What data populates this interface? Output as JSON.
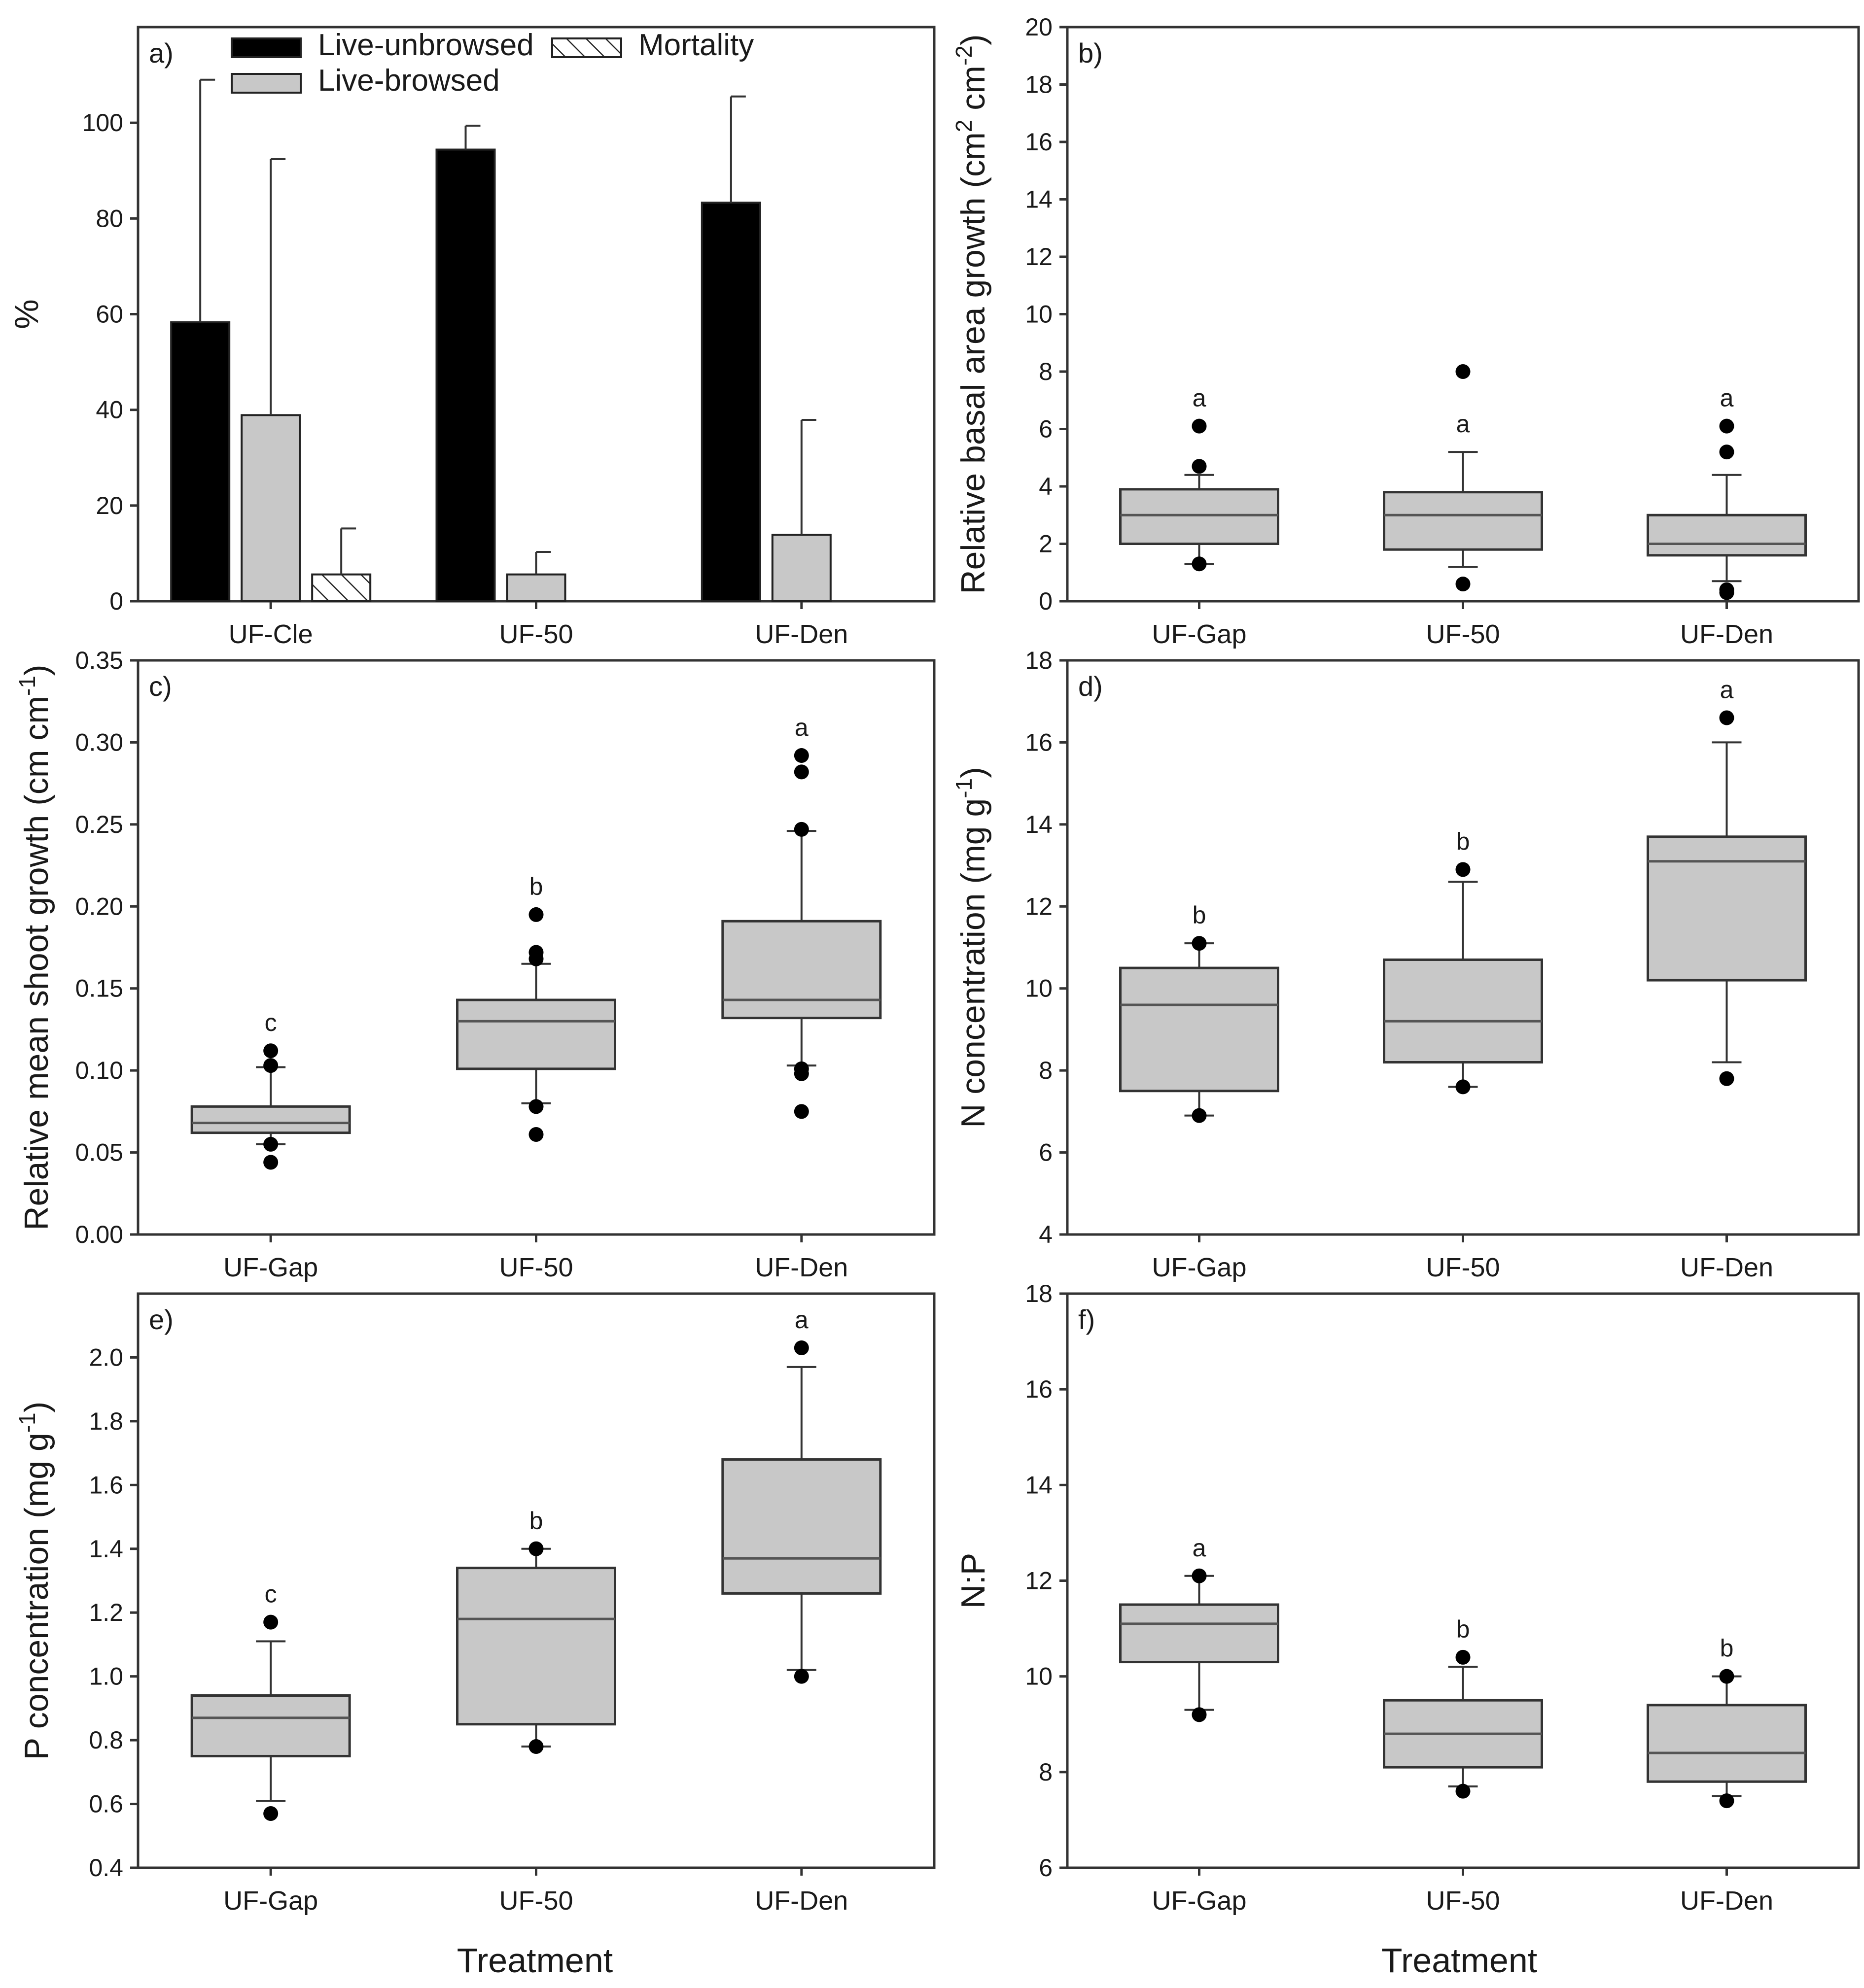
{
  "figure": {
    "xlabel": "Treatment",
    "colors": {
      "live_unbrowsed": "#000000",
      "live_browsed": "#c8c8c8",
      "mortality": "#ffffff",
      "box_fill": "#c8c8c8"
    }
  },
  "chart_data": [
    {
      "id": "a",
      "type": "bar",
      "panel_label": "a)",
      "categories": [
        "UF-Cle",
        "UF-50",
        "UF-Den"
      ],
      "ylabel": "%",
      "ylim": [
        0,
        120
      ],
      "yticks": [
        0,
        20,
        40,
        60,
        80,
        100
      ],
      "legend": {
        "position": "top",
        "entries": [
          "Live-unbrowsed",
          "Live-browsed",
          "Mortality"
        ]
      },
      "series": [
        {
          "name": "Live-unbrowsed",
          "values": [
            58.3,
            94.4,
            83.3
          ],
          "error": [
            50.7,
            5.0,
            22.2
          ],
          "pattern": "solid-black"
        },
        {
          "name": "Live-browsed",
          "values": [
            38.9,
            5.6,
            13.9
          ],
          "error": [
            53.5,
            4.7,
            24.0
          ],
          "pattern": "solid-gray"
        },
        {
          "name": "Mortality",
          "values": [
            5.6,
            0,
            0
          ],
          "error": [
            9.6,
            0,
            0
          ],
          "pattern": "hatched"
        }
      ]
    },
    {
      "id": "b",
      "type": "box",
      "panel_label": "b)",
      "categories": [
        "UF-Gap",
        "UF-50",
        "UF-Den"
      ],
      "ylabel_parts": [
        "Relative basal area growth (cm",
        "2",
        " cm",
        "-2",
        ")"
      ],
      "ylim": [
        0,
        20
      ],
      "yticks": [
        0,
        2,
        4,
        6,
        8,
        10,
        12,
        14,
        16,
        18,
        20
      ],
      "boxes": [
        {
          "q1": 2.0,
          "median": 3.0,
          "q3": 3.9,
          "whisker_low": 1.3,
          "whisker_high": 4.4,
          "outliers": [
            1.3,
            4.7,
            6.1
          ],
          "sig": "a"
        },
        {
          "q1": 1.8,
          "median": 3.0,
          "q3": 3.8,
          "whisker_low": 1.2,
          "whisker_high": 5.2,
          "outliers": [
            0.6,
            8.0
          ],
          "sig": "a"
        },
        {
          "q1": 1.6,
          "median": 2.0,
          "q3": 3.0,
          "whisker_low": 0.7,
          "whisker_high": 4.4,
          "outliers": [
            0.3,
            0.4,
            5.2,
            6.1
          ],
          "sig": "a"
        }
      ]
    },
    {
      "id": "c",
      "type": "box",
      "panel_label": "c)",
      "categories": [
        "UF-Gap",
        "UF-50",
        "UF-Den"
      ],
      "ylabel_parts": [
        "Relative mean shoot growth (cm cm",
        "-1",
        ")"
      ],
      "ylim": [
        0,
        0.35
      ],
      "yticks": [
        "0.00",
        "0.05",
        "0.10",
        "0.15",
        "0.20",
        "0.25",
        "0.30",
        "0.35"
      ],
      "boxes": [
        {
          "q1": 0.062,
          "median": 0.068,
          "q3": 0.078,
          "whisker_low": 0.055,
          "whisker_high": 0.102,
          "outliers": [
            0.044,
            0.055,
            0.103,
            0.112
          ],
          "sig": "c"
        },
        {
          "q1": 0.101,
          "median": 0.13,
          "q3": 0.143,
          "whisker_low": 0.08,
          "whisker_high": 0.165,
          "outliers": [
            0.061,
            0.078,
            0.168,
            0.172,
            0.195
          ],
          "sig": "b"
        },
        {
          "q1": 0.132,
          "median": 0.143,
          "q3": 0.191,
          "whisker_low": 0.103,
          "whisker_high": 0.246,
          "outliers": [
            0.075,
            0.098,
            0.101,
            0.247,
            0.282,
            0.292
          ],
          "sig": "a"
        }
      ]
    },
    {
      "id": "d",
      "type": "box",
      "panel_label": "d)",
      "categories": [
        "UF-Gap",
        "UF-50",
        "UF-Den"
      ],
      "ylabel_parts": [
        "N concentration (mg g",
        "-1",
        ")"
      ],
      "ylim": [
        4,
        18
      ],
      "yticks": [
        4,
        6,
        8,
        10,
        12,
        14,
        16,
        18
      ],
      "boxes": [
        {
          "q1": 7.5,
          "median": 9.6,
          "q3": 10.5,
          "whisker_low": 6.9,
          "whisker_high": 11.1,
          "outliers": [
            6.9,
            11.1
          ],
          "sig": "b"
        },
        {
          "q1": 8.2,
          "median": 9.2,
          "q3": 10.7,
          "whisker_low": 7.6,
          "whisker_high": 12.6,
          "outliers": [
            7.6,
            12.9
          ],
          "sig": "b"
        },
        {
          "q1": 10.2,
          "median": 13.1,
          "q3": 13.7,
          "whisker_low": 8.2,
          "whisker_high": 16.0,
          "outliers": [
            7.8,
            16.6
          ],
          "sig": "a"
        }
      ]
    },
    {
      "id": "e",
      "type": "box",
      "panel_label": "e)",
      "categories": [
        "UF-Gap",
        "UF-50",
        "UF-Den"
      ],
      "ylabel_parts": [
        "P concentration (mg g",
        "-1",
        ")"
      ],
      "ylim": [
        0.4,
        2.2
      ],
      "yticks": [
        "0.4",
        "0.6",
        "0.8",
        "1.0",
        "1.2",
        "1.4",
        "1.6",
        "1.8",
        "2.0"
      ],
      "boxes": [
        {
          "q1": 0.75,
          "median": 0.87,
          "q3": 0.94,
          "whisker_low": 0.61,
          "whisker_high": 1.11,
          "outliers": [
            0.57,
            1.17
          ],
          "sig": "c"
        },
        {
          "q1": 0.85,
          "median": 1.18,
          "q3": 1.34,
          "whisker_low": 0.78,
          "whisker_high": 1.4,
          "outliers": [
            0.78,
            1.4
          ],
          "sig": "b"
        },
        {
          "q1": 1.26,
          "median": 1.37,
          "q3": 1.68,
          "whisker_low": 1.02,
          "whisker_high": 1.97,
          "outliers": [
            1.0,
            2.03
          ],
          "sig": "a"
        }
      ]
    },
    {
      "id": "f",
      "type": "box",
      "panel_label": "f)",
      "categories": [
        "UF-Gap",
        "UF-50",
        "UF-Den"
      ],
      "ylabel_parts": [
        "N:P"
      ],
      "ylim": [
        6,
        18
      ],
      "yticks": [
        6,
        8,
        10,
        12,
        14,
        16,
        18
      ],
      "boxes": [
        {
          "q1": 10.3,
          "median": 11.1,
          "q3": 11.5,
          "whisker_low": 9.3,
          "whisker_high": 12.1,
          "outliers": [
            9.2,
            12.1
          ],
          "sig": "a"
        },
        {
          "q1": 8.1,
          "median": 8.8,
          "q3": 9.5,
          "whisker_low": 7.7,
          "whisker_high": 10.2,
          "outliers": [
            7.6,
            10.4
          ],
          "sig": "b"
        },
        {
          "q1": 7.8,
          "median": 8.4,
          "q3": 9.4,
          "whisker_low": 7.5,
          "whisker_high": 10.0,
          "outliers": [
            7.4,
            10.0
          ],
          "sig": "b"
        }
      ]
    }
  ]
}
